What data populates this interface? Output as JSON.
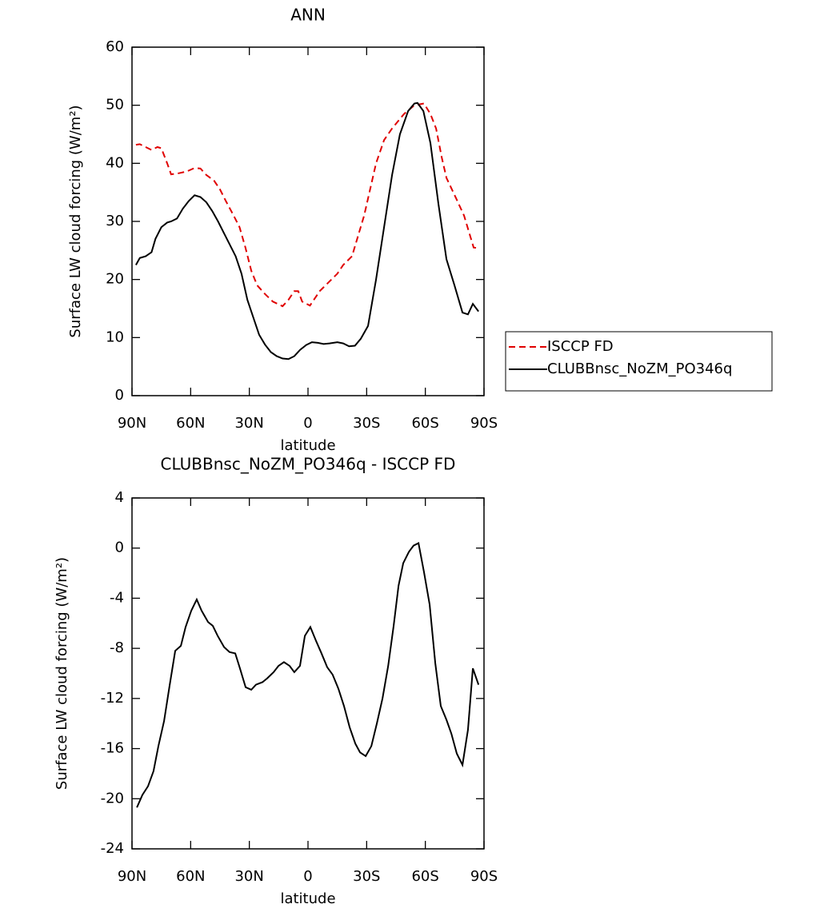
{
  "chart_data": [
    {
      "type": "line",
      "title": "ANN",
      "xlabel": "latitude",
      "ylabel": "Surface LW cloud forcing (W/m²)",
      "xlim": [
        90,
        -90
      ],
      "xticks": [
        {
          "value": 90,
          "label": "90N"
        },
        {
          "value": 60,
          "label": "60N"
        },
        {
          "value": 30,
          "label": "30N"
        },
        0,
        {
          "value": -30,
          "label": "30S"
        },
        {
          "value": -60,
          "label": "60S"
        },
        {
          "value": -90,
          "label": "90S"
        }
      ],
      "ylim": [
        0,
        60
      ],
      "yticks": [
        0,
        10,
        20,
        30,
        40,
        50,
        60
      ],
      "legend": "right",
      "series": [
        {
          "name": "ISCCP FD",
          "color": "#e00000",
          "dash": true,
          "x": [
            88,
            86,
            83,
            80,
            77,
            75,
            72,
            70,
            66,
            62,
            58,
            55,
            52,
            48,
            45,
            42,
            38,
            35,
            32,
            29,
            26,
            22,
            18,
            13,
            10,
            7,
            5,
            3,
            -1,
            -3,
            -6,
            -9,
            -12,
            -15,
            -18,
            -22.5,
            -28.7,
            -34.8,
            -38.9,
            -43,
            -49.1,
            -54.4,
            -59.3,
            -62.6,
            -65.5,
            -68.4,
            -70.8,
            -75.7,
            -79.8,
            -84.7,
            -87.2
          ],
          "values": [
            43.2,
            43.3,
            42.8,
            42.3,
            42.8,
            42.6,
            40,
            38.1,
            38.3,
            38.6,
            39.2,
            39.1,
            38,
            37,
            35.5,
            33.5,
            31,
            29,
            25.5,
            21.5,
            19,
            17.5,
            16.2,
            15.4,
            16.5,
            18,
            18,
            16.2,
            15.5,
            16.5,
            18,
            19,
            20,
            21,
            22.5,
            24,
            31,
            40,
            44,
            46,
            48.5,
            50,
            50.3,
            48.5,
            46,
            41,
            37.5,
            34,
            31,
            25.5,
            25.4
          ]
        },
        {
          "name": "CLUBBnsc_NoZM_PO346q",
          "color": "#000000",
          "dash": false,
          "x": [
            88,
            86,
            83,
            80,
            78,
            75,
            72,
            70,
            67,
            64,
            61,
            58,
            55,
            52,
            49,
            46,
            43,
            40,
            37,
            34,
            31,
            28,
            25,
            22,
            19,
            16,
            13,
            10,
            7,
            4,
            1,
            -2,
            -5,
            -8,
            -11,
            -15,
            -18,
            -21,
            -24,
            -27,
            -30.7,
            -34.8,
            -38.9,
            -43,
            -47,
            -51.2,
            -54.4,
            -56,
            -59,
            -62.6,
            -66.7,
            -70.8,
            -74.9,
            -79,
            -81.8,
            -84.3,
            -87.2
          ],
          "values": [
            22.5,
            23.7,
            24,
            24.7,
            27,
            29,
            29.8,
            30,
            30.5,
            32.2,
            33.5,
            34.5,
            34.2,
            33.3,
            31.8,
            30,
            28,
            26,
            24,
            21,
            16.5,
            13.5,
            10.5,
            8.8,
            7.5,
            6.8,
            6.4,
            6.3,
            6.8,
            7.9,
            8.7,
            9.2,
            9.1,
            8.9,
            9,
            9.2,
            9,
            8.5,
            8.6,
            9.8,
            12,
            20,
            29,
            38,
            45,
            49,
            50.3,
            50.4,
            49,
            43.5,
            33,
            23.5,
            19,
            14.3,
            14,
            15.8,
            14.5
          ]
        }
      ]
    },
    {
      "type": "line",
      "title": "CLUBBnsc_NoZM_PO346q - ISCCP FD",
      "xlabel": "latitude",
      "ylabel": "Surface LW cloud forcing (W/m²)",
      "xlim": [
        90,
        -90
      ],
      "xticks": [
        {
          "value": 90,
          "label": "90N"
        },
        {
          "value": 60,
          "label": "60N"
        },
        {
          "value": 30,
          "label": "30N"
        },
        0,
        {
          "value": -30,
          "label": "30S"
        },
        {
          "value": -60,
          "label": "60S"
        },
        {
          "value": -90,
          "label": "90S"
        }
      ],
      "ylim": [
        -24,
        4
      ],
      "yticks": [
        -24,
        -20,
        -16,
        -12,
        -8,
        -4,
        0,
        4
      ],
      "series": [
        {
          "color": "#000000",
          "dash": false,
          "x": [
            87.5,
            84.7,
            81.8,
            79,
            76.5,
            73.6,
            70.8,
            67.9,
            65,
            62.6,
            59.7,
            56.9,
            54.4,
            51.1,
            48.7,
            46.2,
            42.9,
            40.1,
            37.2,
            34.8,
            31.9,
            29,
            26.6,
            23.3,
            20.9,
            17.6,
            15.1,
            12.3,
            9.4,
            7,
            4.1,
            1.6,
            -1.2,
            -4.1,
            -6.9,
            -9.8,
            -12.6,
            -15.5,
            -18.4,
            -21.3,
            -24.2,
            -26.6,
            -29.5,
            -32.4,
            -35.2,
            -38.1,
            -41,
            -43.8,
            -46.3,
            -48.7,
            -51.6,
            -54,
            -56.5,
            -59.3,
            -62.2,
            -65.1,
            -67.9,
            -70.8,
            -73.3,
            -76.1,
            -79,
            -81.8,
            -84.3,
            -87.2
          ],
          "values": [
            -20.7,
            -19.7,
            -19,
            -17.8,
            -15.8,
            -13.8,
            -11,
            -8.2,
            -7.8,
            -6.3,
            -5,
            -4.1,
            -5,
            -5.9,
            -6.2,
            -7,
            -7.9,
            -8.3,
            -8.4,
            -9.6,
            -11.1,
            -11.3,
            -10.9,
            -10.7,
            -10.4,
            -9.9,
            -9.4,
            -9.1,
            -9.4,
            -9.9,
            -9.4,
            -7,
            -6.3,
            -7.4,
            -8.4,
            -9.5,
            -10.1,
            -11.2,
            -12.6,
            -14.3,
            -15.6,
            -16.3,
            -16.6,
            -15.8,
            -14,
            -12,
            -9.4,
            -6.2,
            -3,
            -1.2,
            -0.3,
            0.2,
            0.4,
            -1.9,
            -4.5,
            -9.2,
            -12.6,
            -13.7,
            -14.8,
            -16.4,
            -17.3,
            -14.5,
            -9.6,
            -10.9
          ]
        }
      ]
    }
  ]
}
